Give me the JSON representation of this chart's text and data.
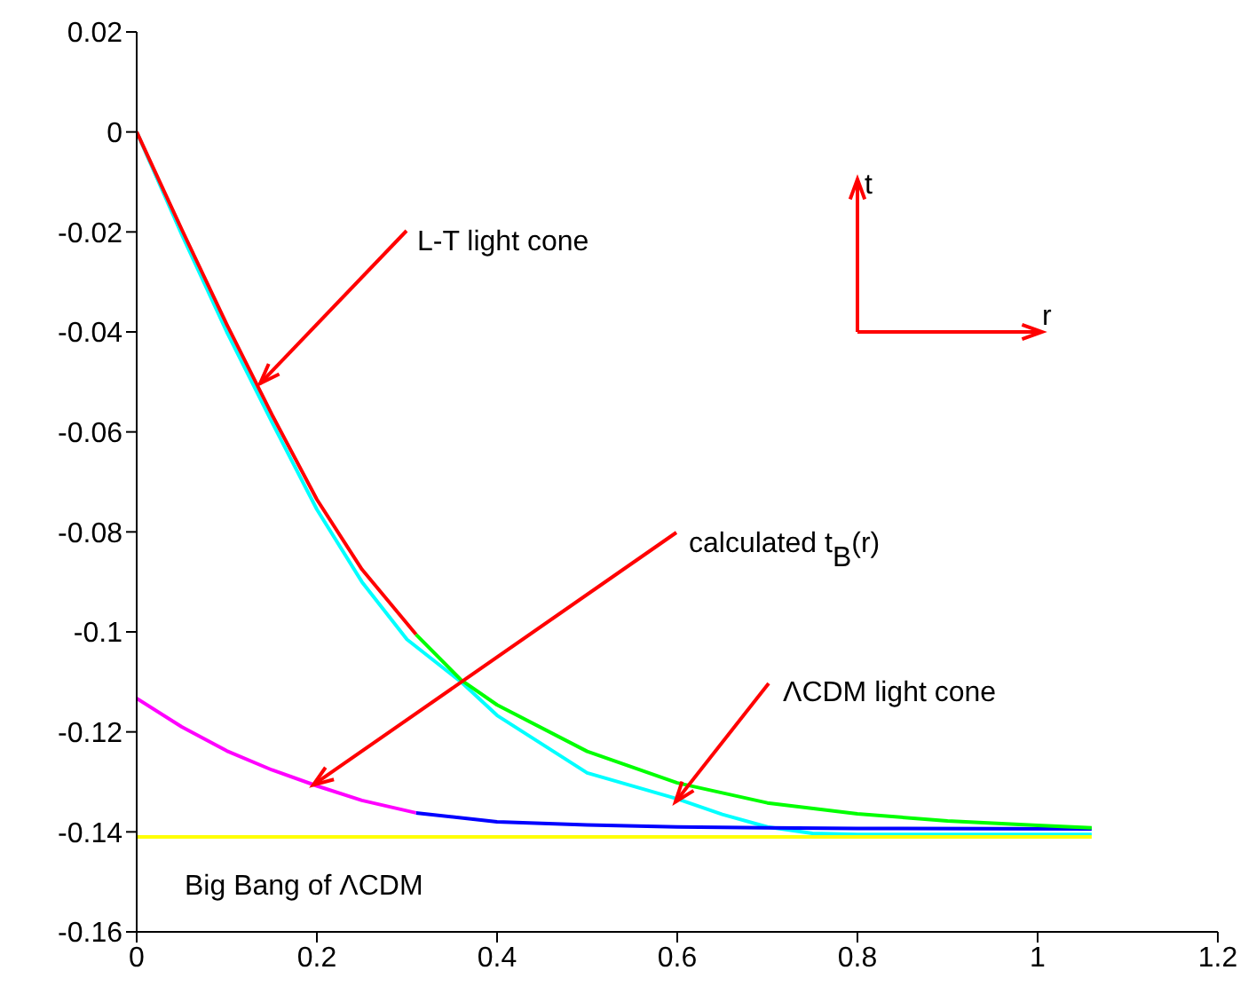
{
  "chart_data": {
    "type": "line",
    "xlim": [
      0,
      1.2
    ],
    "ylim": [
      -0.16,
      0.02
    ],
    "xticks": [
      0,
      0.2,
      0.4,
      0.6,
      0.8,
      1,
      1.2
    ],
    "yticks": [
      -0.16,
      -0.14,
      -0.12,
      -0.1,
      -0.08,
      -0.06,
      -0.04,
      -0.02,
      0,
      0.02
    ],
    "series": [
      {
        "color": "#00ffff",
        "x": [
          0,
          0.05,
          0.1,
          0.15,
          0.2,
          0.25,
          0.3,
          0.36,
          0.4,
          0.5,
          0.6,
          0.65,
          0.7,
          0.75,
          0.8,
          0.9,
          1.06
        ],
        "values": [
          0,
          -0.0205,
          -0.04,
          -0.058,
          -0.0755,
          -0.09,
          -0.1015,
          -0.11,
          -0.1167,
          -0.1282,
          -0.1334,
          -0.1365,
          -0.139,
          -0.1403,
          -0.1405,
          -0.1405,
          -0.1405
        ]
      },
      {
        "color": "#ffff00",
        "x": [
          0,
          1.06
        ],
        "values": [
          -0.141,
          -0.141
        ]
      },
      {
        "color": "#0000ff",
        "x": [
          0.31,
          0.4,
          0.5,
          0.6,
          0.7,
          0.8,
          1.06
        ],
        "values": [
          -0.1362,
          -0.138,
          -0.1386,
          -0.139,
          -0.1392,
          -0.1393,
          -0.1394
        ]
      },
      {
        "color": "#ff00ff",
        "x": [
          0,
          0.05,
          0.1,
          0.15,
          0.2,
          0.25,
          0.31
        ],
        "values": [
          -0.1133,
          -0.119,
          -0.1238,
          -0.1276,
          -0.1308,
          -0.1337,
          -0.1362
        ]
      },
      {
        "color": "#00ff00",
        "x": [
          0.31,
          0.36,
          0.4,
          0.5,
          0.6,
          0.7,
          0.8,
          0.9,
          1,
          1.06
        ],
        "values": [
          -0.1005,
          -0.1096,
          -0.1146,
          -0.1239,
          -0.1302,
          -0.1342,
          -0.1364,
          -0.1378,
          -0.1387,
          -0.1392
        ]
      },
      {
        "color": "#ff0000",
        "x": [
          0,
          0.05,
          0.1,
          0.15,
          0.2,
          0.25,
          0.31
        ],
        "values": [
          0,
          -0.0195,
          -0.0385,
          -0.0565,
          -0.0735,
          -0.0875,
          -0.1005
        ]
      }
    ],
    "annotations": [
      {
        "text": "L-T light cone",
        "x": 0.137,
        "y": -0.0503
      },
      {
        "text": "calculated t$_{B}$(r)",
        "x": 0.196,
        "y": -0.1306
      },
      {
        "text": "ΛCDM light cone",
        "x": 0.598,
        "y": -0.134
      },
      "Big Bang of ΛCDM",
      "t",
      "r"
    ]
  }
}
